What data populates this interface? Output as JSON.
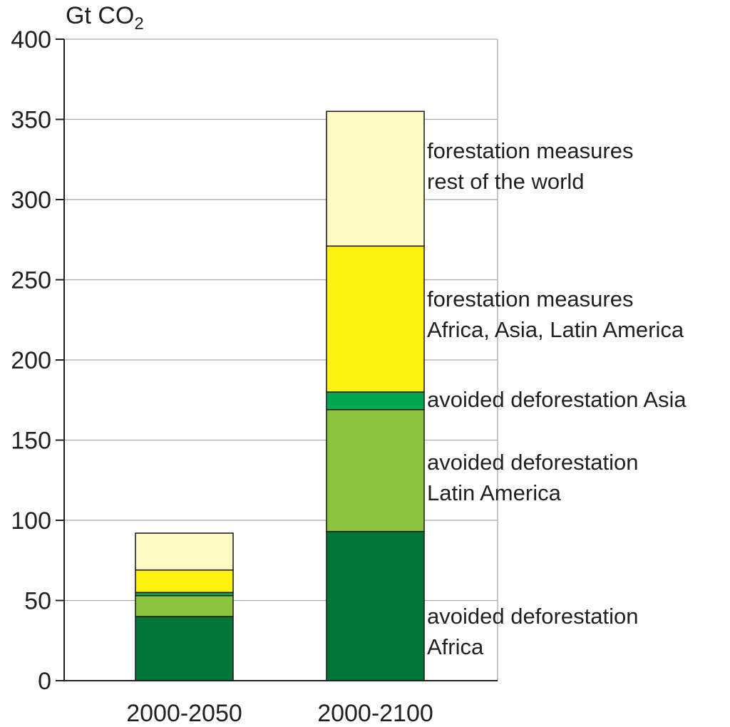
{
  "chart_data": {
    "type": "bar",
    "stacked": true,
    "ylabel": "Gt CO",
    "ylabel_subscript": "2",
    "ylim": [
      0,
      400
    ],
    "yticks": [
      "0",
      "50",
      "100",
      "150",
      "200",
      "250",
      "300",
      "350",
      "400"
    ],
    "grid": true,
    "categories": [
      "2000-2050",
      "2000-2100"
    ],
    "series": [
      {
        "name": "avoided deforestation Africa",
        "color": "#007538",
        "values": [
          40,
          93
        ]
      },
      {
        "name": "avoided deforestation Latin America",
        "color": "#8bc53f",
        "values": [
          13,
          76
        ]
      },
      {
        "name": "avoided deforestation Asia",
        "color": "#00a651",
        "values": [
          2,
          11
        ]
      },
      {
        "name": "forestation measures Africa, Asia, Latin America",
        "color": "#fff212",
        "values": [
          14,
          91
        ]
      },
      {
        "name": "forestation measures rest of the world",
        "color": "#fff9c4",
        "values": [
          23,
          84
        ]
      }
    ],
    "annotations": [
      {
        "lines": [
          "forestation measures",
          "rest of the world"
        ]
      },
      {
        "lines": [
          "forestation measures",
          "Africa, Asia, Latin America"
        ]
      },
      {
        "lines": [
          "avoided deforestation Asia"
        ]
      },
      {
        "lines": [
          "avoided deforestation",
          "Latin America"
        ]
      },
      {
        "lines": [
          "avoided deforestation",
          "Africa"
        ]
      }
    ]
  }
}
